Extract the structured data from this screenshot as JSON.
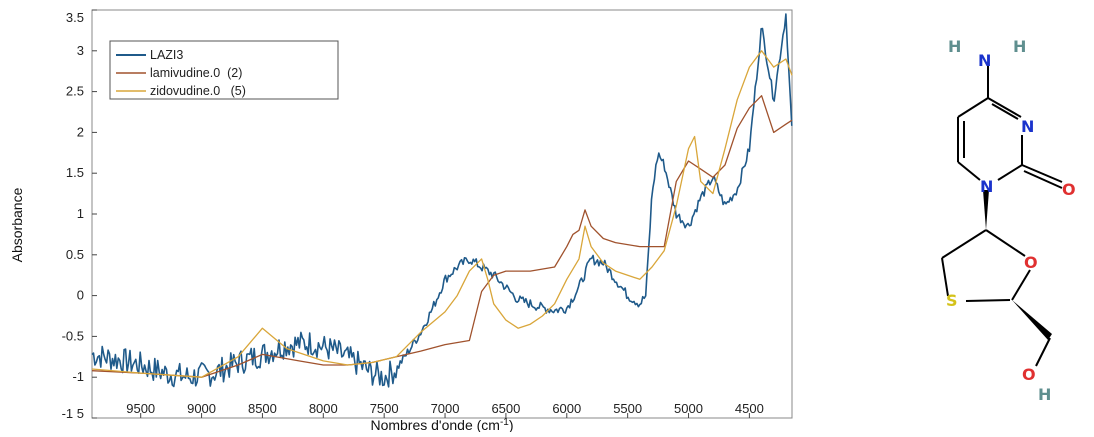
{
  "chart_data": {
    "type": "line",
    "title": "",
    "xlabel": "Nombres d'onde (cm",
    "xlabel_sup": "-1",
    "xlabel_close": ")",
    "ylabel": "Absorbance",
    "xlim": [
      9900,
      4150
    ],
    "ylim": [
      -1.5,
      3.5
    ],
    "x_reversed": true,
    "grid": false,
    "legend_position": "top-left",
    "x_ticks": [
      "9500",
      "9000",
      "8500",
      "8000",
      "7500",
      "7000",
      "6500",
      "6000",
      "5500",
      "5000",
      "4500"
    ],
    "x_tick_values": [
      9500,
      9000,
      8500,
      8000,
      7500,
      7000,
      6500,
      6000,
      5500,
      5000,
      4500
    ],
    "y_ticks": [
      "3.5",
      "3",
      "2.5",
      "2",
      "1.5",
      "1",
      "0.5",
      "0",
      "-0.5",
      "-1",
      "-1 5"
    ],
    "y_tick_values": [
      3.5,
      3,
      2.5,
      2,
      1.5,
      1,
      0.5,
      0,
      -0.5,
      -1,
      -1.5
    ],
    "series": [
      {
        "name": "LAZI3",
        "color": "#1f5a8a",
        "noisy": true,
        "x": [
          9900,
          9700,
          9500,
          9300,
          9100,
          8900,
          8700,
          8500,
          8300,
          8100,
          7900,
          7700,
          7600,
          7500,
          7400,
          7300,
          7200,
          7100,
          7000,
          6900,
          6800,
          6700,
          6600,
          6500,
          6400,
          6300,
          6200,
          6100,
          6000,
          5900,
          5800,
          5700,
          5600,
          5500,
          5400,
          5350,
          5300,
          5250,
          5200,
          5100,
          5000,
          4900,
          4800,
          4700,
          4600,
          4500,
          4400,
          4300,
          4200,
          4150
        ],
        "y": [
          -0.72,
          -0.78,
          -0.85,
          -0.95,
          -1.0,
          -0.95,
          -0.82,
          -0.72,
          -0.6,
          -0.58,
          -0.68,
          -0.85,
          -0.95,
          -1.0,
          -0.9,
          -0.68,
          -0.45,
          -0.15,
          0.2,
          0.35,
          0.45,
          0.35,
          0.25,
          0.1,
          -0.05,
          -0.1,
          -0.15,
          -0.18,
          -0.15,
          0.1,
          0.45,
          0.4,
          0.2,
          0.0,
          -0.1,
          0.0,
          1.25,
          1.75,
          1.6,
          1.0,
          0.85,
          1.2,
          1.45,
          1.1,
          1.3,
          1.8,
          3.3,
          2.4,
          3.45,
          2.0
        ]
      },
      {
        "name": "lamivudine.0  (2)",
        "color": "#a0522d",
        "noisy": false,
        "x": [
          9900,
          9500,
          9000,
          8700,
          8500,
          8200,
          8000,
          7800,
          7600,
          7400,
          7200,
          7000,
          6800,
          6700,
          6600,
          6500,
          6300,
          6100,
          6000,
          5950,
          5900,
          5850,
          5800,
          5700,
          5600,
          5400,
          5200,
          5100,
          5000,
          4900,
          4800,
          4700,
          4600,
          4500,
          4400,
          4300,
          4200,
          4150
        ],
        "y": [
          -0.92,
          -0.95,
          -1.0,
          -0.85,
          -0.72,
          -0.8,
          -0.85,
          -0.85,
          -0.82,
          -0.75,
          -0.68,
          -0.6,
          -0.55,
          0.05,
          0.25,
          0.3,
          0.3,
          0.35,
          0.6,
          0.75,
          0.8,
          1.05,
          0.85,
          0.7,
          0.65,
          0.6,
          0.6,
          1.4,
          1.65,
          1.55,
          1.45,
          1.6,
          2.05,
          2.3,
          2.45,
          2.0,
          2.1,
          2.15
        ]
      },
      {
        "name": "zidovudine.0   (5)",
        "color": "#d9a63a",
        "noisy": false,
        "x": [
          9900,
          9500,
          9000,
          8700,
          8500,
          8300,
          8000,
          7800,
          7600,
          7400,
          7200,
          7000,
          6900,
          6800,
          6700,
          6650,
          6600,
          6500,
          6400,
          6300,
          6200,
          6100,
          6000,
          5900,
          5850,
          5800,
          5700,
          5600,
          5500,
          5400,
          5300,
          5200,
          5100,
          5000,
          4950,
          4900,
          4800,
          4700,
          4600,
          4500,
          4400,
          4300,
          4200,
          4150
        ],
        "y": [
          -0.9,
          -0.95,
          -1.0,
          -0.75,
          -0.4,
          -0.65,
          -0.8,
          -0.85,
          -0.82,
          -0.75,
          -0.45,
          -0.2,
          0.0,
          0.3,
          0.45,
          0.2,
          -0.1,
          -0.3,
          -0.4,
          -0.35,
          -0.25,
          -0.1,
          0.2,
          0.45,
          0.85,
          0.6,
          0.4,
          0.3,
          0.25,
          0.2,
          0.35,
          0.55,
          1.1,
          1.8,
          1.95,
          1.4,
          1.25,
          1.8,
          2.4,
          2.8,
          3.0,
          2.8,
          2.9,
          2.7
        ]
      }
    ]
  },
  "molecule": {
    "atoms": {
      "h_left": "H",
      "n_amine": "N",
      "h_right": "H",
      "n_ring_upper": "N",
      "n_ring_lower": "N",
      "o_carbonyl": "O",
      "o_ring": "O",
      "s_ring": "S",
      "o_hydroxyl": "O",
      "h_hydroxyl": "H"
    },
    "colors": {
      "nitrogen": "#1a33cc",
      "oxygen": "#e03030",
      "sulfur": "#d4c21a",
      "hydrogen": "#5f8f8f",
      "bond": "#000000"
    }
  }
}
